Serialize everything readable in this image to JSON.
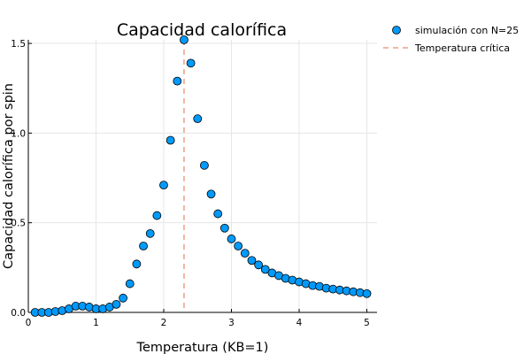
{
  "chart_data": {
    "type": "scatter",
    "title": "Capacidad calorífica",
    "xlabel": "Temperatura (KB=1)",
    "ylabel": "Capacidad calorífica por spin",
    "xlim": [
      0,
      5.15
    ],
    "ylim": [
      0,
      1.52
    ],
    "xticks": [
      0,
      1,
      2,
      3,
      4,
      5
    ],
    "yticks": [
      0,
      0.5,
      1,
      1.5
    ],
    "xtick_labels": [
      "0",
      "1",
      "2",
      "3",
      "4",
      "5"
    ],
    "ytick_labels": [
      "0.0",
      "0.5",
      "1.0",
      "1.5"
    ],
    "grid": true,
    "legend_position": "top-right-outside",
    "series": [
      {
        "name": "simulación con N=25",
        "type": "scatter",
        "color": "#009AFA",
        "x": [
          0.1,
          0.2,
          0.3,
          0.4,
          0.5,
          0.6,
          0.7,
          0.8,
          0.9,
          1.0,
          1.1,
          1.2,
          1.3,
          1.4,
          1.5,
          1.6,
          1.7,
          1.8,
          1.9,
          2.0,
          2.1,
          2.2,
          2.3,
          2.4,
          2.5,
          2.6,
          2.7,
          2.8,
          2.9,
          3.0,
          3.1,
          3.2,
          3.3,
          3.4,
          3.5,
          3.6,
          3.7,
          3.8,
          3.9,
          4.0,
          4.1,
          4.2,
          4.3,
          4.4,
          4.5,
          4.6,
          4.7,
          4.8,
          4.9,
          5.0
        ],
        "y": [
          0.0,
          0.0,
          0.0,
          0.005,
          0.01,
          0.02,
          0.035,
          0.035,
          0.03,
          0.02,
          0.02,
          0.03,
          0.045,
          0.08,
          0.16,
          0.27,
          0.37,
          0.44,
          0.54,
          0.71,
          0.96,
          1.29,
          1.52,
          1.39,
          1.08,
          0.82,
          0.66,
          0.55,
          0.47,
          0.41,
          0.37,
          0.33,
          0.29,
          0.265,
          0.24,
          0.22,
          0.205,
          0.19,
          0.18,
          0.17,
          0.16,
          0.15,
          0.145,
          0.135,
          0.13,
          0.125,
          0.12,
          0.115,
          0.11,
          0.105
        ]
      },
      {
        "name": "Temperatura crítica",
        "type": "vline",
        "color": "#E26F46",
        "x": 2.3
      }
    ]
  }
}
